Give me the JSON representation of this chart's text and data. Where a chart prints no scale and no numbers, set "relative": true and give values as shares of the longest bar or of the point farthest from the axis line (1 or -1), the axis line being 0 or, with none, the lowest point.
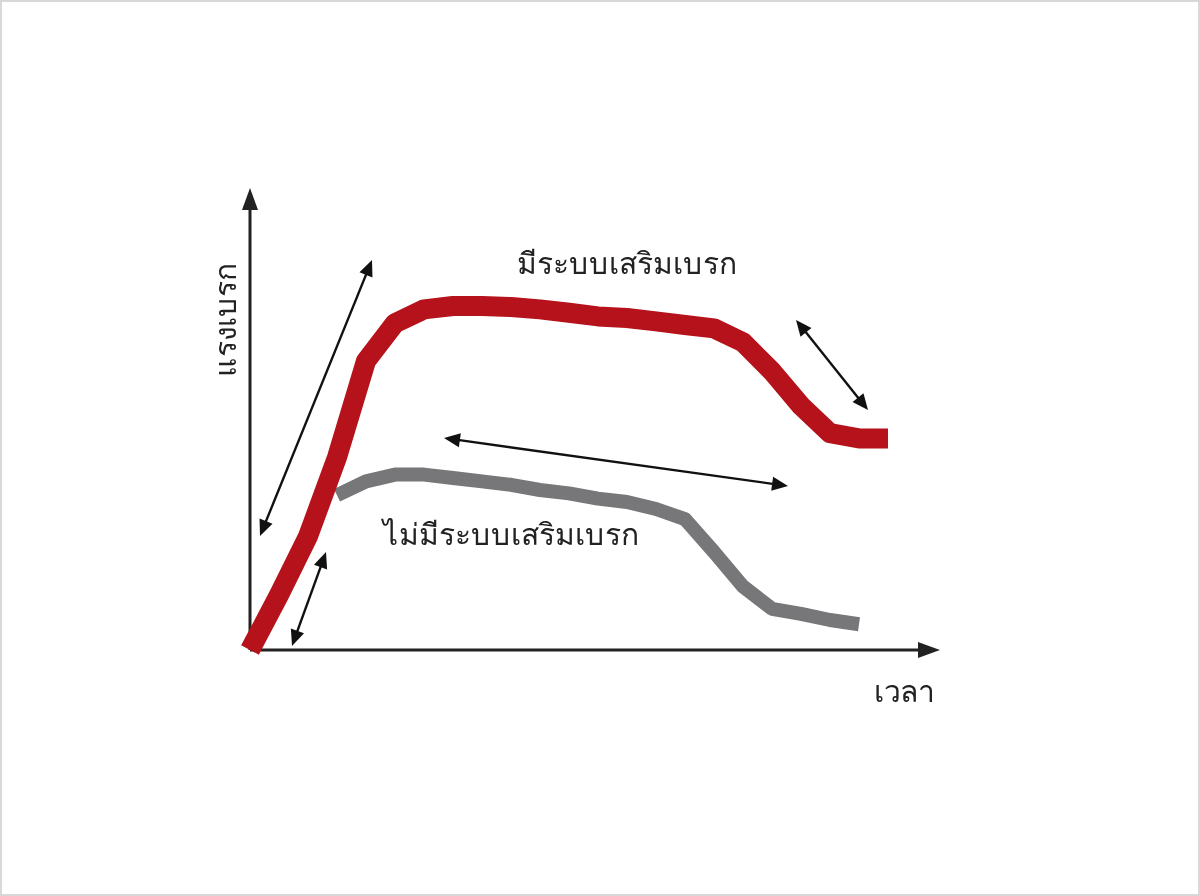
{
  "chart_data": {
    "type": "line",
    "relative": true,
    "xlabel": "เวลา",
    "ylabel": "แรงเบรก",
    "grid": false,
    "marker": "none",
    "line_style": "solid",
    "categories": [
      null,
      null,
      null,
      null,
      null,
      null,
      null,
      null,
      null,
      null,
      null,
      null,
      null,
      null,
      null,
      null,
      null,
      null,
      null,
      null,
      null,
      null,
      null
    ],
    "series": [
      {
        "name": "มีระบบเสริมเบรก",
        "color": "#b5121b",
        "values": [
          0,
          0.16,
          0.33,
          0.56,
          0.84,
          0.95,
          0.99,
          1,
          1,
          0.997,
          0.99,
          0.98,
          0.97,
          0.965,
          0.955,
          0.945,
          0.935,
          0.895,
          0.81,
          0.71,
          0.63,
          0.615,
          0.615
        ]
      },
      {
        "name": "ไม่มีระบบเสริมเบรก",
        "color": "#77777a",
        "values": [
          null,
          null,
          null,
          0.45,
          0.49,
          0.51,
          0.51,
          0.5,
          0.49,
          0.48,
          0.465,
          0.455,
          0.44,
          0.43,
          0.41,
          0.38,
          0.285,
          0.185,
          0.12,
          0.105,
          0.087,
          0.075,
          null
        ]
      }
    ]
  }
}
